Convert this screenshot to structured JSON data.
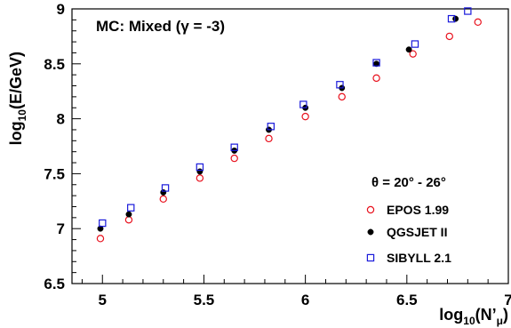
{
  "chart_data": {
    "type": "scatter",
    "title": "MC: Mixed (γ = -3)",
    "xlabel": "log10(N'μ)",
    "ylabel": "log10(E/GeV)",
    "xlim": [
      4.85,
      7.0
    ],
    "ylim": [
      6.5,
      9.0
    ],
    "x_ticks": [
      "5",
      "5.5",
      "6",
      "6.5",
      "7"
    ],
    "y_ticks": [
      "6.5",
      "7",
      "7.5",
      "8",
      "8.5",
      "9"
    ],
    "grid": false,
    "legend_position": "bottom-right",
    "legend_header": "θ = 20° - 26°",
    "series": [
      {
        "name": "EPOS   1.99",
        "marker": "open-circle",
        "color": "#e8101c",
        "points": [
          [
            4.99,
            6.91
          ],
          [
            5.13,
            7.08
          ],
          [
            5.3,
            7.27
          ],
          [
            5.48,
            7.46
          ],
          [
            5.65,
            7.64
          ],
          [
            5.82,
            7.82
          ],
          [
            6.0,
            8.02
          ],
          [
            6.18,
            8.2
          ],
          [
            6.35,
            8.37
          ],
          [
            6.53,
            8.59
          ],
          [
            6.71,
            8.75
          ],
          [
            6.85,
            8.88
          ]
        ]
      },
      {
        "name": "QGSJET II",
        "marker": "filled-circle",
        "color": "#000000",
        "points": [
          [
            4.99,
            7.0
          ],
          [
            5.13,
            7.13
          ],
          [
            5.3,
            7.33
          ],
          [
            5.48,
            7.52
          ],
          [
            5.65,
            7.71
          ],
          [
            5.82,
            7.9
          ],
          [
            6.0,
            8.1
          ],
          [
            6.18,
            8.28
          ],
          [
            6.35,
            8.5
          ],
          [
            6.51,
            8.63
          ],
          [
            6.74,
            8.91
          ]
        ]
      },
      {
        "name": "SIBYLL 2.1",
        "marker": "open-square",
        "color": "#1a1adb",
        "points": [
          [
            5.0,
            7.05
          ],
          [
            5.14,
            7.19
          ],
          [
            5.31,
            7.37
          ],
          [
            5.48,
            7.56
          ],
          [
            5.65,
            7.74
          ],
          [
            5.83,
            7.93
          ],
          [
            5.99,
            8.13
          ],
          [
            6.17,
            8.31
          ],
          [
            6.35,
            8.51
          ],
          [
            6.54,
            8.68
          ],
          [
            6.72,
            8.91
          ],
          [
            6.8,
            8.98
          ]
        ]
      }
    ]
  }
}
